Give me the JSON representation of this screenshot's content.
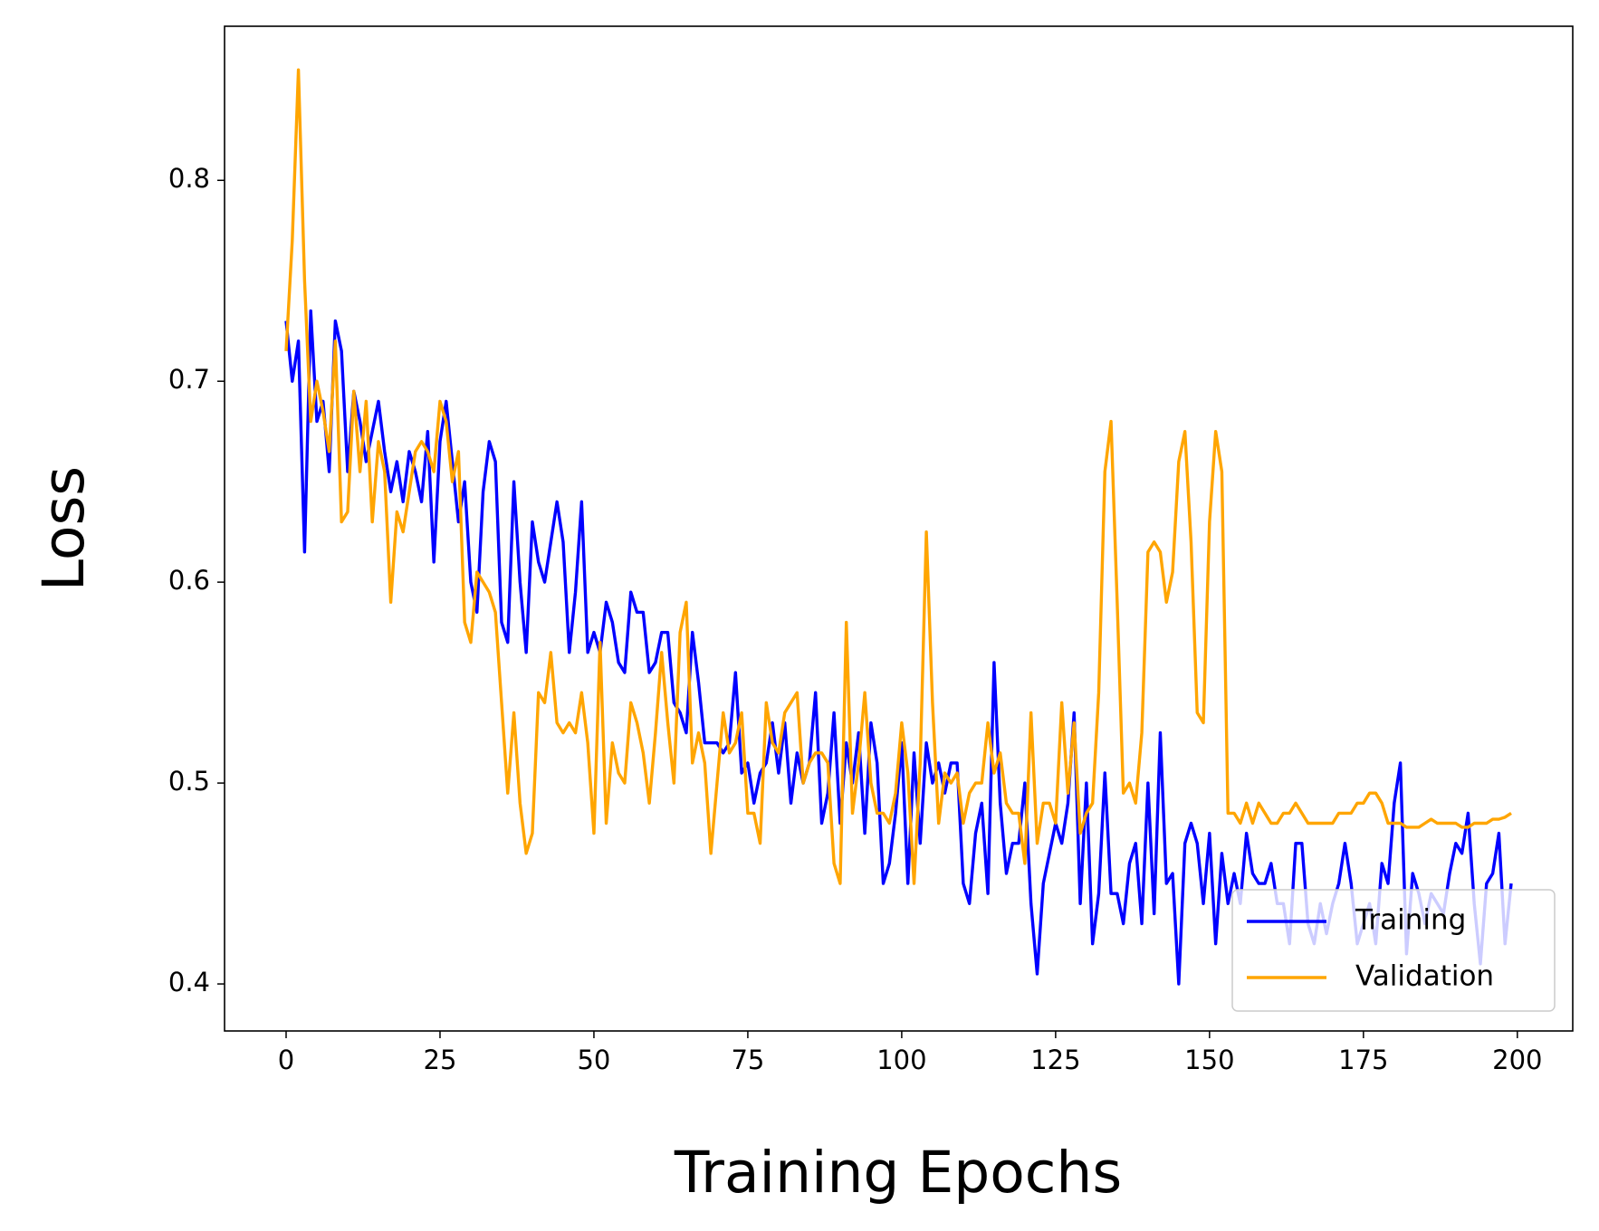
{
  "chart_data": {
    "type": "line",
    "xlabel": "Training Epochs",
    "ylabel": "Loss",
    "xlim": [
      -10,
      209
    ],
    "ylim": [
      0.3766,
      0.8767
    ],
    "xticks": [
      0,
      25,
      50,
      75,
      100,
      125,
      150,
      175,
      200
    ],
    "yticks": [
      0.4,
      0.5,
      0.6,
      0.7,
      0.8
    ],
    "grid": false,
    "legend": "lower right",
    "x": [
      0,
      1,
      2,
      3,
      4,
      5,
      6,
      7,
      8,
      9,
      10,
      11,
      12,
      13,
      14,
      15,
      16,
      17,
      18,
      19,
      20,
      21,
      22,
      23,
      24,
      25,
      26,
      27,
      28,
      29,
      30,
      31,
      32,
      33,
      34,
      35,
      36,
      37,
      38,
      39,
      40,
      41,
      42,
      43,
      44,
      45,
      46,
      47,
      48,
      49,
      50,
      51,
      52,
      53,
      54,
      55,
      56,
      57,
      58,
      59,
      60,
      61,
      62,
      63,
      64,
      65,
      66,
      67,
      68,
      69,
      70,
      71,
      72,
      73,
      74,
      75,
      76,
      77,
      78,
      79,
      80,
      81,
      82,
      83,
      84,
      85,
      86,
      87,
      88,
      89,
      90,
      91,
      92,
      93,
      94,
      95,
      96,
      97,
      98,
      99,
      100,
      101,
      102,
      103,
      104,
      105,
      106,
      107,
      108,
      109,
      110,
      111,
      112,
      113,
      114,
      115,
      116,
      117,
      118,
      119,
      120,
      121,
      122,
      123,
      124,
      125,
      126,
      127,
      128,
      129,
      130,
      131,
      132,
      133,
      134,
      135,
      136,
      137,
      138,
      139,
      140,
      141,
      142,
      143,
      144,
      145,
      146,
      147,
      148,
      149,
      150,
      151,
      152,
      153,
      154,
      155,
      156,
      157,
      158,
      159,
      160,
      161,
      162,
      163,
      164,
      165,
      166,
      167,
      168,
      169,
      170,
      171,
      172,
      173,
      174,
      175,
      176,
      177,
      178,
      179,
      180,
      181,
      182,
      183,
      184,
      185,
      186,
      187,
      188,
      189,
      190,
      191,
      192,
      193,
      194,
      195,
      196,
      197,
      198,
      199
    ],
    "series": [
      {
        "name": "Training",
        "color": "#0000ff",
        "values": [
          0.73,
          0.7,
          0.72,
          0.615,
          0.735,
          0.68,
          0.69,
          0.655,
          0.73,
          0.715,
          0.655,
          0.695,
          0.68,
          0.66,
          0.675,
          0.69,
          0.665,
          0.645,
          0.66,
          0.64,
          0.665,
          0.655,
          0.64,
          0.675,
          0.61,
          0.67,
          0.69,
          0.66,
          0.63,
          0.65,
          0.6,
          0.585,
          0.645,
          0.67,
          0.66,
          0.58,
          0.57,
          0.65,
          0.6,
          0.565,
          0.63,
          0.61,
          0.6,
          0.62,
          0.64,
          0.62,
          0.565,
          0.595,
          0.64,
          0.565,
          0.575,
          0.565,
          0.59,
          0.58,
          0.56,
          0.555,
          0.595,
          0.585,
          0.585,
          0.555,
          0.56,
          0.575,
          0.575,
          0.54,
          0.535,
          0.525,
          0.575,
          0.55,
          0.52,
          0.52,
          0.52,
          0.515,
          0.52,
          0.555,
          0.505,
          0.51,
          0.49,
          0.505,
          0.51,
          0.53,
          0.505,
          0.53,
          0.49,
          0.515,
          0.5,
          0.51,
          0.545,
          0.48,
          0.495,
          0.535,
          0.48,
          0.52,
          0.5,
          0.525,
          0.475,
          0.53,
          0.51,
          0.45,
          0.46,
          0.485,
          0.52,
          0.45,
          0.515,
          0.47,
          0.52,
          0.5,
          0.51,
          0.495,
          0.51,
          0.51,
          0.45,
          0.44,
          0.475,
          0.49,
          0.445,
          0.56,
          0.49,
          0.455,
          0.47,
          0.47,
          0.5,
          0.44,
          0.405,
          0.45,
          0.465,
          0.48,
          0.47,
          0.49,
          0.535,
          0.44,
          0.5,
          0.42,
          0.445,
          0.505,
          0.445,
          0.445,
          0.43,
          0.46,
          0.47,
          0.43,
          0.5,
          0.435,
          0.525,
          0.45,
          0.455,
          0.4,
          0.47,
          0.48,
          0.47,
          0.44,
          0.475,
          0.42,
          0.465,
          0.44,
          0.455,
          0.44,
          0.475,
          0.455,
          0.45,
          0.45,
          0.46,
          0.44,
          0.44,
          0.42,
          0.47,
          0.47,
          0.43,
          0.42,
          0.44,
          0.425,
          0.44,
          0.45,
          0.47,
          0.45,
          0.42,
          0.43,
          0.44,
          0.42,
          0.46,
          0.45,
          0.49,
          0.51,
          0.415,
          0.455,
          0.445,
          0.43,
          0.445,
          0.44,
          0.435,
          0.455,
          0.47,
          0.465,
          0.485,
          0.44,
          0.41,
          0.45,
          0.455,
          0.475,
          0.42,
          0.45
        ]
      },
      {
        "name": "Validation",
        "color": "#ffa500",
        "values": [
          0.715,
          0.77,
          0.855,
          0.75,
          0.68,
          0.7,
          0.685,
          0.665,
          0.72,
          0.63,
          0.635,
          0.695,
          0.655,
          0.69,
          0.63,
          0.67,
          0.655,
          0.59,
          0.635,
          0.625,
          0.645,
          0.665,
          0.67,
          0.665,
          0.655,
          0.69,
          0.68,
          0.65,
          0.665,
          0.58,
          0.57,
          0.605,
          0.6,
          0.595,
          0.585,
          0.54,
          0.495,
          0.535,
          0.49,
          0.465,
          0.475,
          0.545,
          0.54,
          0.565,
          0.53,
          0.525,
          0.53,
          0.525,
          0.545,
          0.52,
          0.475,
          0.57,
          0.48,
          0.52,
          0.505,
          0.5,
          0.54,
          0.53,
          0.515,
          0.49,
          0.525,
          0.565,
          0.53,
          0.5,
          0.575,
          0.59,
          0.51,
          0.525,
          0.51,
          0.465,
          0.5,
          0.535,
          0.515,
          0.52,
          0.535,
          0.485,
          0.485,
          0.47,
          0.54,
          0.52,
          0.515,
          0.535,
          0.54,
          0.545,
          0.5,
          0.51,
          0.515,
          0.515,
          0.51,
          0.46,
          0.45,
          0.58,
          0.485,
          0.51,
          0.545,
          0.5,
          0.485,
          0.485,
          0.48,
          0.495,
          0.53,
          0.505,
          0.45,
          0.51,
          0.625,
          0.54,
          0.48,
          0.505,
          0.5,
          0.505,
          0.48,
          0.495,
          0.5,
          0.5,
          0.53,
          0.505,
          0.515,
          0.49,
          0.485,
          0.485,
          0.46,
          0.535,
          0.47,
          0.49,
          0.49,
          0.48,
          0.54,
          0.495,
          0.53,
          0.475,
          0.485,
          0.49,
          0.545,
          0.655,
          0.68,
          0.59,
          0.495,
          0.5,
          0.49,
          0.525,
          0.615,
          0.62,
          0.615,
          0.59,
          0.605,
          0.66,
          0.675,
          0.62,
          0.535,
          0.53,
          0.63,
          0.675,
          0.655,
          0.485,
          0.485,
          0.48,
          0.49,
          0.48,
          0.49,
          0.485,
          0.48,
          0.48,
          0.485,
          0.485,
          0.49,
          0.485,
          0.48,
          0.48,
          0.48,
          0.48,
          0.48,
          0.485,
          0.485,
          0.485,
          0.49,
          0.49,
          0.495,
          0.495,
          0.49,
          0.48,
          0.48,
          0.48,
          0.478,
          0.478,
          0.478,
          0.48,
          0.482,
          0.48,
          0.48,
          0.48,
          0.48,
          0.478,
          0.478,
          0.48,
          0.48,
          0.48,
          0.482,
          0.482,
          0.483,
          0.485
        ]
      }
    ]
  }
}
